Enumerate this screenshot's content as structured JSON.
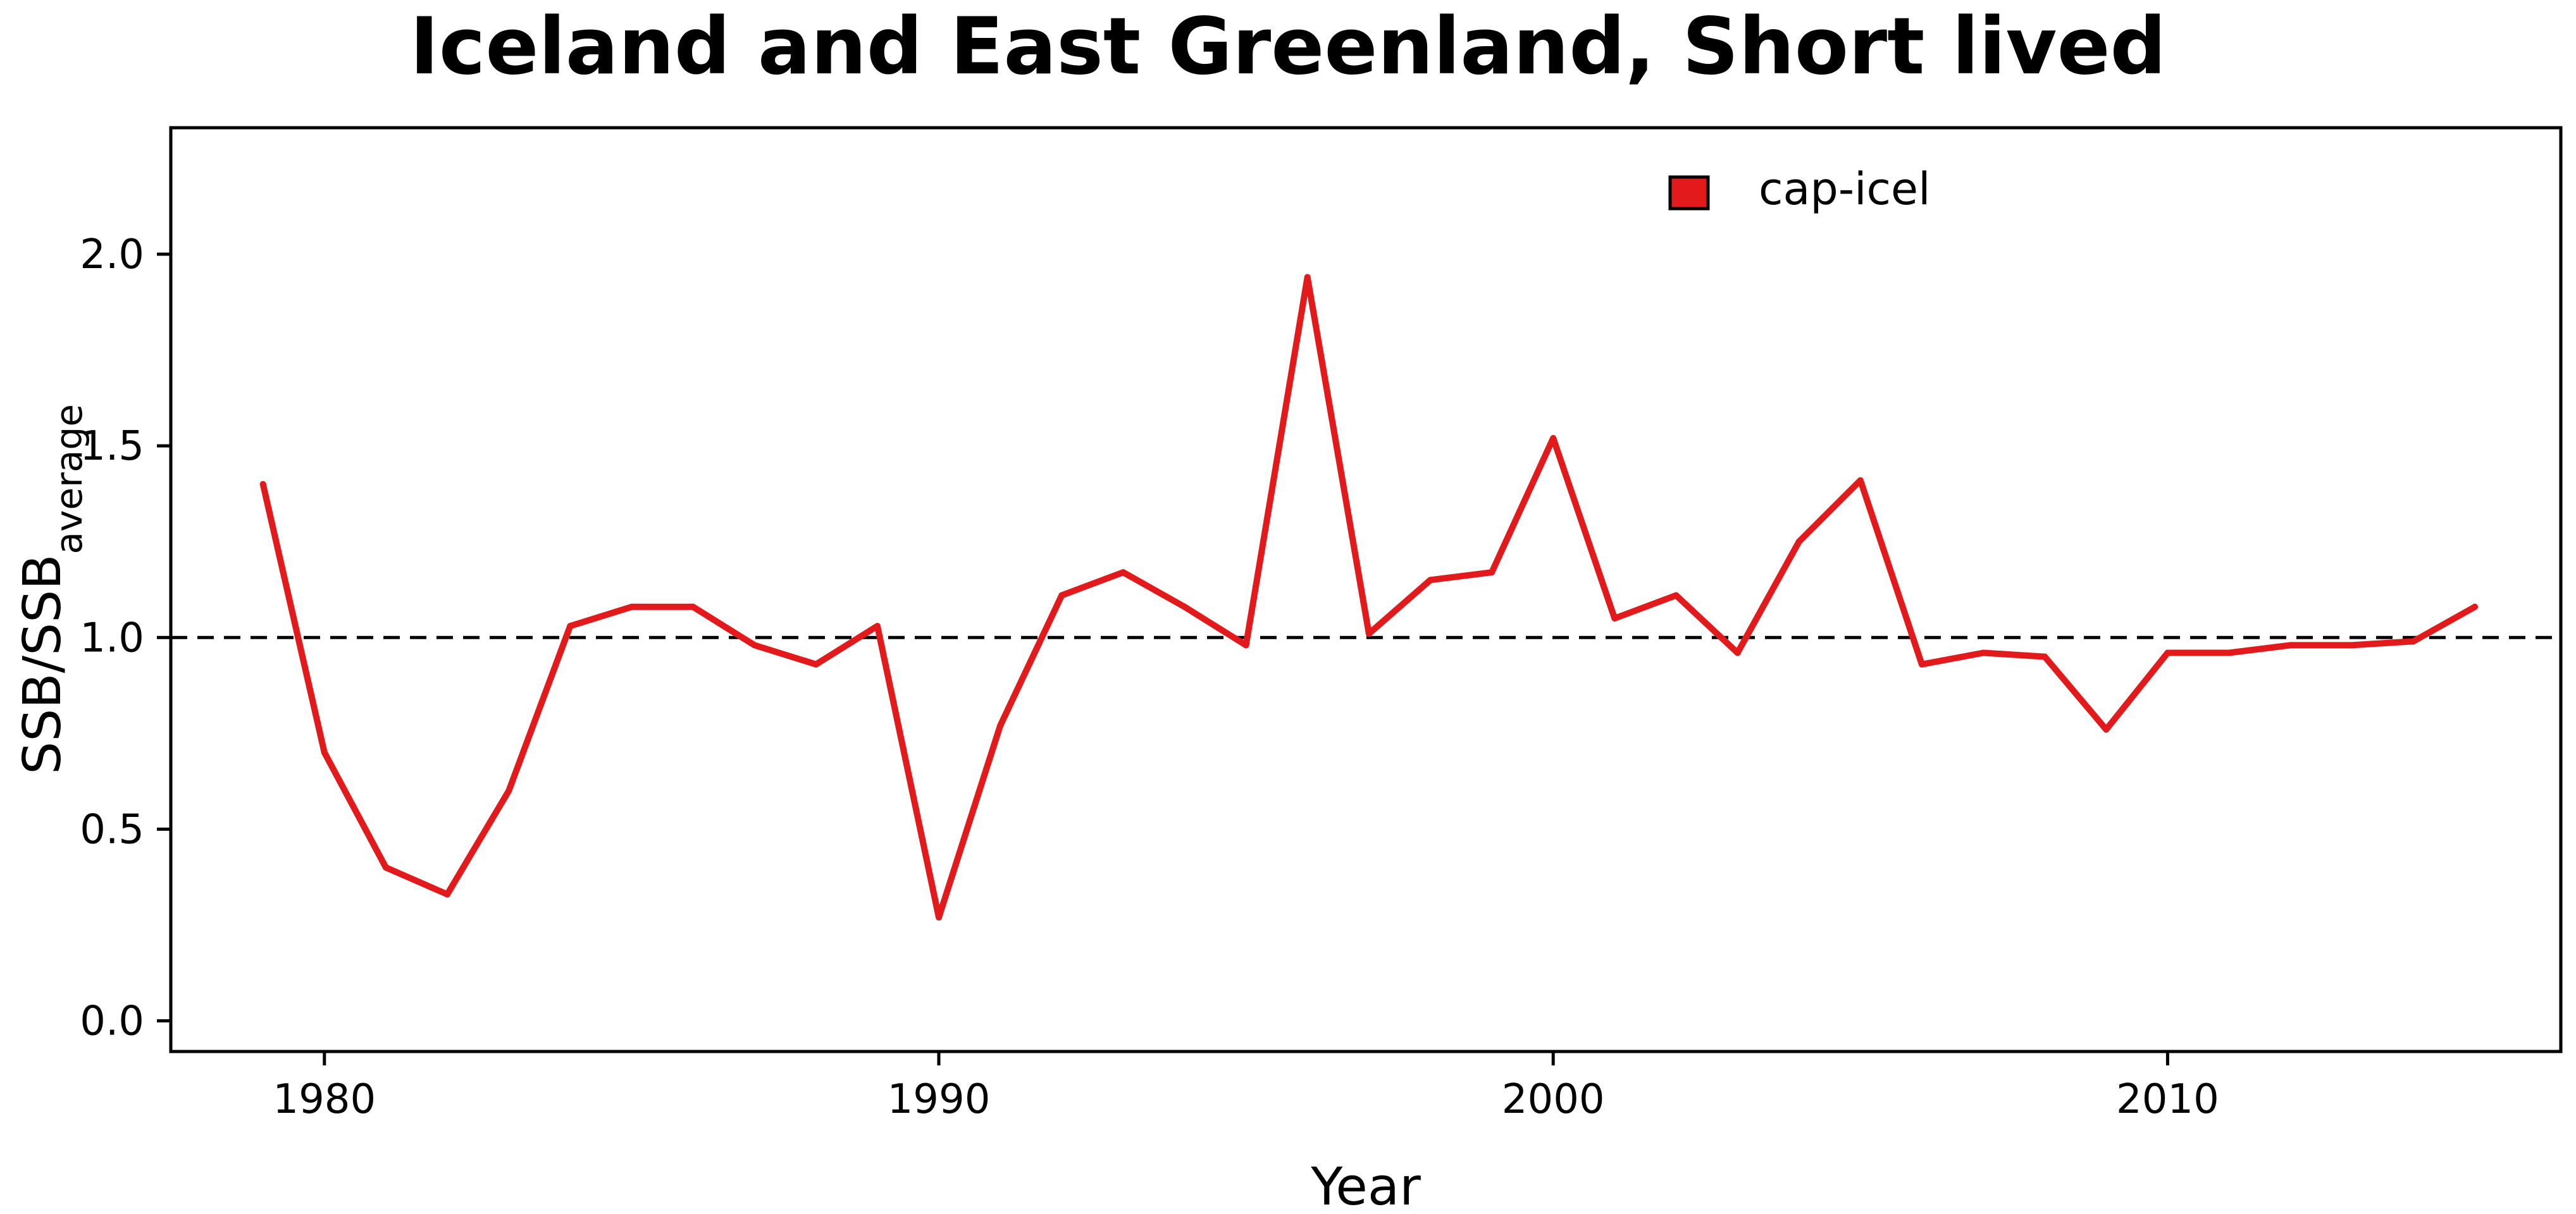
{
  "chart_data": {
    "type": "line",
    "title": "Iceland and East Greenland, Short lived",
    "xlabel": "Year",
    "ylabel": "SSB/SSB",
    "ylabel_subscript": "average",
    "xlim": [
      1977.5,
      2016.4
    ],
    "ylim": [
      -0.08,
      2.33
    ],
    "x_ticks": [
      1980,
      1990,
      2000,
      2010
    ],
    "x_tick_labels": [
      "1980",
      "1990",
      "2000",
      "2010"
    ],
    "y_ticks": [
      0.0,
      0.5,
      1.0,
      1.5,
      2.0
    ],
    "y_tick_labels": [
      "0.0",
      "0.5",
      "1.0",
      "1.5",
      "2.0"
    ],
    "grid": false,
    "legend_position": "top-right",
    "reference_line": {
      "y": 1.0,
      "style": "dashed",
      "color": "#000000"
    },
    "series": [
      {
        "name": "cap-icel",
        "color": "#e31a1c",
        "x": [
          1979,
          1980,
          1981,
          1982,
          1983,
          1984,
          1985,
          1986,
          1987,
          1988,
          1989,
          1990,
          1991,
          1992,
          1993,
          1994,
          1995,
          1996,
          1997,
          1998,
          1999,
          2000,
          2001,
          2002,
          2003,
          2004,
          2005,
          2006,
          2007,
          2008,
          2009,
          2010,
          2011,
          2012,
          2013,
          2014,
          2015
        ],
        "values": [
          1.4,
          0.7,
          0.4,
          0.33,
          0.6,
          1.03,
          1.08,
          1.08,
          0.98,
          0.93,
          1.03,
          0.27,
          0.77,
          1.11,
          1.17,
          1.08,
          0.98,
          1.94,
          1.01,
          1.15,
          1.17,
          1.52,
          1.05,
          1.11,
          0.96,
          1.25,
          1.41,
          0.93,
          0.96,
          0.95,
          0.76,
          0.96,
          0.96,
          0.98,
          0.98,
          0.99,
          1.08
        ]
      }
    ]
  }
}
